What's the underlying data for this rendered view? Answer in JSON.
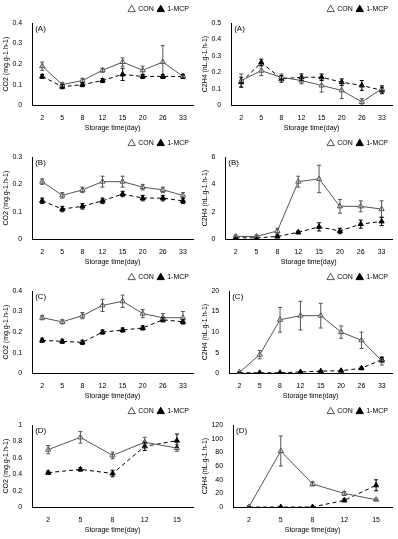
{
  "chart_data": [
    {
      "type": "line",
      "annotation": "(A)",
      "x_label": "Storage time(day)",
      "y_label": "CO2 (mg.g-1.h-1)",
      "categories": [
        "2",
        "5",
        "8",
        "12",
        "15",
        "20",
        "26",
        "33"
      ],
      "series": [
        {
          "name": "CON",
          "color": "#555555",
          "marker": "open triangle",
          "line_style": "solid",
          "values": [
            0.19,
            0.1,
            0.12,
            0.17,
            0.21,
            0.17,
            0.21,
            0.14
          ],
          "errors": [
            0.02,
            0.01,
            0.01,
            0.01,
            0.02,
            0.02,
            0.08,
            0.01
          ]
        },
        {
          "name": "1-MCP",
          "color": "#000000",
          "marker": "triangle",
          "line_style": "dashed",
          "values": [
            0.14,
            0.09,
            0.1,
            0.12,
            0.15,
            0.14,
            0.14,
            0.14
          ],
          "errors": [
            0.01,
            0.01,
            0.01,
            0.01,
            0.03,
            0.01,
            0.01,
            0.01
          ]
        }
      ],
      "ylim": [
        0,
        0.4
      ],
      "yticks": [
        0,
        0.1,
        0.2,
        0.3,
        0.4
      ],
      "grid": false,
      "legend": "upper right"
    },
    {
      "type": "line",
      "annotation": "(A)",
      "x_label": "Storage time(day)",
      "y_label": "C2H4 (nL.g-1.h-1)",
      "categories": [
        "2",
        "5",
        "8",
        "12",
        "15",
        "20",
        "26",
        "33"
      ],
      "series": [
        {
          "name": "CON",
          "color": "#555555",
          "marker": "open triangle",
          "line_style": "solid",
          "values": [
            0.15,
            0.21,
            0.17,
            0.15,
            0.12,
            0.09,
            0.02,
            0.1
          ],
          "errors": [
            0.04,
            0.03,
            0.02,
            0.02,
            0.04,
            0.05,
            0.02,
            0.02
          ]
        },
        {
          "name": "1-MCP",
          "color": "#000000",
          "marker": "triangle",
          "line_style": "dashed",
          "values": [
            0.14,
            0.26,
            0.16,
            0.17,
            0.17,
            0.14,
            0.12,
            0.09
          ],
          "errors": [
            0.03,
            0.02,
            0.02,
            0.02,
            0.02,
            0.02,
            0.03,
            0.02
          ]
        }
      ],
      "ylim": [
        0,
        0.5
      ],
      "yticks": [
        0,
        0.1,
        0.2,
        0.3,
        0.4,
        0.5
      ],
      "grid": false,
      "legend": "upper right"
    },
    {
      "type": "line",
      "annotation": "(B)",
      "x_label": "Storage time(day)",
      "y_label": "CO2 (mg.g-1.h-1)",
      "categories": [
        "2",
        "5",
        "8",
        "12",
        "15",
        "20",
        "26",
        "33"
      ],
      "series": [
        {
          "name": "CON",
          "color": "#555555",
          "marker": "open triangle",
          "line_style": "solid",
          "values": [
            0.21,
            0.16,
            0.18,
            0.21,
            0.21,
            0.19,
            0.18,
            0.16
          ],
          "errors": [
            0.01,
            0.01,
            0.01,
            0.02,
            0.02,
            0.01,
            0.01,
            0.01
          ]
        },
        {
          "name": "1-MCP",
          "color": "#000000",
          "marker": "triangle",
          "line_style": "dashed",
          "values": [
            0.14,
            0.11,
            0.12,
            0.14,
            0.165,
            0.15,
            0.15,
            0.14
          ],
          "errors": [
            0.01,
            0.01,
            0.01,
            0.01,
            0.01,
            0.01,
            0.01,
            0.01
          ]
        }
      ],
      "ylim": [
        0,
        0.3
      ],
      "yticks": [
        0,
        0.1,
        0.2,
        0.3
      ],
      "grid": false,
      "legend": "upper right"
    },
    {
      "type": "line",
      "annotation": "(B)",
      "x_label": "Storage time(day)",
      "y_label": "C2H4 (nL.g-1.h-1)",
      "categories": [
        "2",
        "5",
        "8",
        "12",
        "15",
        "20",
        "26",
        "33"
      ],
      "series": [
        {
          "name": "CON",
          "color": "#555555",
          "marker": "open triangle",
          "line_style": "solid",
          "values": [
            0.2,
            0.2,
            0.6,
            4.2,
            4.4,
            2.4,
            2.4,
            2.2
          ],
          "errors": [
            0.1,
            0.1,
            0.2,
            0.4,
            1.0,
            0.5,
            0.4,
            0.6
          ]
        },
        {
          "name": "1-MCP",
          "color": "#000000",
          "marker": "triangle",
          "line_style": "dashed",
          "values": [
            0.1,
            0.1,
            0.2,
            0.5,
            0.9,
            0.6,
            1.1,
            1.3
          ],
          "errors": [
            0.05,
            0.05,
            0.1,
            0.1,
            0.3,
            0.2,
            0.3,
            0.3
          ]
        }
      ],
      "ylim": [
        0,
        6
      ],
      "yticks": [
        0,
        2,
        4,
        6
      ],
      "grid": false,
      "legend": "upper right"
    },
    {
      "type": "line",
      "annotation": "(C)",
      "x_label": "Storage time(day)",
      "y_label": "CO2 (mg.g-1.h-1)",
      "categories": [
        "2",
        "5",
        "8",
        "12",
        "15",
        "20",
        "26",
        "33"
      ],
      "series": [
        {
          "name": "CON",
          "color": "#555555",
          "marker": "open triangle",
          "line_style": "solid",
          "values": [
            0.27,
            0.25,
            0.28,
            0.33,
            0.35,
            0.29,
            0.27,
            0.27
          ],
          "errors": [
            0.01,
            0.01,
            0.015,
            0.03,
            0.03,
            0.02,
            0.02,
            0.03
          ]
        },
        {
          "name": "1-MCP",
          "color": "#000000",
          "marker": "triangle",
          "line_style": "dashed",
          "values": [
            0.16,
            0.155,
            0.15,
            0.2,
            0.21,
            0.22,
            0.26,
            0.25
          ],
          "errors": [
            0.01,
            0.01,
            0.01,
            0.01,
            0.01,
            0.01,
            0.01,
            0.01
          ]
        }
      ],
      "ylim": [
        0,
        0.4
      ],
      "yticks": [
        0,
        0.1,
        0.2,
        0.3,
        0.4
      ],
      "grid": false,
      "legend": "upper right"
    },
    {
      "type": "line",
      "annotation": "(C)",
      "x_label": "Storage time(day)",
      "y_label": "C2H4 (nL.g-1.h-1)",
      "categories": [
        "2",
        "5",
        "8",
        "12",
        "15",
        "20",
        "26",
        "33"
      ],
      "series": [
        {
          "name": "CON",
          "color": "#555555",
          "marker": "open triangle",
          "line_style": "solid",
          "values": [
            0.2,
            4.5,
            13,
            14,
            14,
            10,
            8,
            3
          ],
          "errors": [
            0.2,
            1,
            3,
            3.5,
            3,
            1.5,
            2,
            1
          ]
        },
        {
          "name": "1-MCP",
          "color": "#000000",
          "marker": "triangle",
          "line_style": "dashed",
          "values": [
            0.1,
            0.1,
            0.1,
            0.3,
            0.5,
            0.6,
            1.2,
            3.3
          ],
          "errors": [
            0.05,
            0.05,
            0.05,
            0.1,
            0.1,
            0.2,
            0.3,
            0.5
          ]
        }
      ],
      "ylim": [
        0,
        20
      ],
      "yticks": [
        0,
        5,
        10,
        15,
        20
      ],
      "grid": false,
      "legend": "upper right"
    },
    {
      "type": "line",
      "annotation": "(D)",
      "x_label": "Storage time(day)",
      "y_label": "CO2 (mg.g-1.h-1)",
      "categories": [
        "2",
        "5",
        "8",
        "12",
        "15"
      ],
      "series": [
        {
          "name": "CON",
          "color": "#555555",
          "marker": "open triangle",
          "line_style": "solid",
          "values": [
            0.7,
            0.85,
            0.63,
            0.79,
            0.72
          ],
          "errors": [
            0.05,
            0.07,
            0.04,
            0.06,
            0.04
          ]
        },
        {
          "name": "1-MCP",
          "color": "#000000",
          "marker": "triangle",
          "line_style": "dashed",
          "values": [
            0.42,
            0.46,
            0.41,
            0.74,
            0.81
          ],
          "errors": [
            0.02,
            0.02,
            0.04,
            0.05,
            0.08
          ]
        }
      ],
      "ylim": [
        0,
        1.0
      ],
      "yticks": [
        0,
        0.2,
        0.4,
        0.6,
        0.8,
        1.0
      ],
      "grid": false,
      "legend": "upper right"
    },
    {
      "type": "line",
      "annotation": "(D)",
      "x_label": "Storage time(day)",
      "y_label": "C2H4 (nL.g-1.h-1)",
      "categories": [
        "2",
        "5",
        "8",
        "12",
        "15"
      ],
      "series": [
        {
          "name": "CON",
          "color": "#555555",
          "marker": "open triangle",
          "line_style": "solid",
          "values": [
            0.5,
            82,
            34,
            20,
            11
          ],
          "errors": [
            0.5,
            22,
            3,
            3,
            1
          ]
        },
        {
          "name": "1-MCP",
          "color": "#000000",
          "marker": "triangle",
          "line_style": "dashed",
          "values": [
            0.2,
            0.2,
            0.3,
            10,
            32
          ],
          "errors": [
            0.1,
            0.1,
            0.1,
            2,
            8
          ]
        }
      ],
      "ylim": [
        0,
        120
      ],
      "yticks": [
        0,
        20,
        40,
        60,
        80,
        100,
        120
      ],
      "grid": false,
      "legend": "upper right"
    }
  ]
}
